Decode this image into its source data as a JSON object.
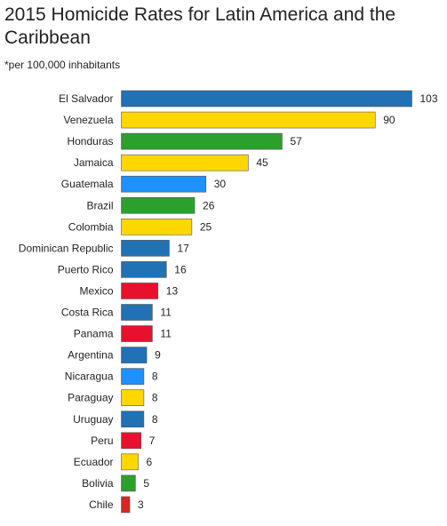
{
  "chart_data": {
    "type": "bar",
    "orientation": "horizontal",
    "title": "2015 Homicide Rates for Latin America and the Caribbean",
    "subtitle": "*per 100,000 inhabitants",
    "categories": [
      "El Salvador",
      "Venezuela",
      "Honduras",
      "Jamaica",
      "Guatemala",
      "Brazil",
      "Colombia",
      "Dominican Republic",
      "Puerto Rico",
      "Mexico",
      "Costa Rica",
      "Panama",
      "Argentina",
      "Nicaragua",
      "Paraguay",
      "Uruguay",
      "Peru",
      "Ecuador",
      "Bolivia",
      "Chile"
    ],
    "values": [
      103,
      90,
      57,
      45,
      30,
      26,
      25,
      17,
      16,
      13,
      11,
      11,
      9,
      8,
      8,
      8,
      7,
      6,
      5,
      3
    ],
    "colors": [
      "#2171b5",
      "#ffd700",
      "#2ca02c",
      "#ffd700",
      "#1e90ff",
      "#2ca02c",
      "#ffd700",
      "#2171b5",
      "#2171b5",
      "#e8112d",
      "#2171b5",
      "#e8112d",
      "#2171b5",
      "#1e90ff",
      "#ffd700",
      "#2171b5",
      "#e8112d",
      "#ffd700",
      "#2ca02c",
      "#d62728"
    ],
    "xlim": [
      0,
      103
    ],
    "grid": false,
    "legend": "none",
    "data_labels": "outside-end"
  }
}
